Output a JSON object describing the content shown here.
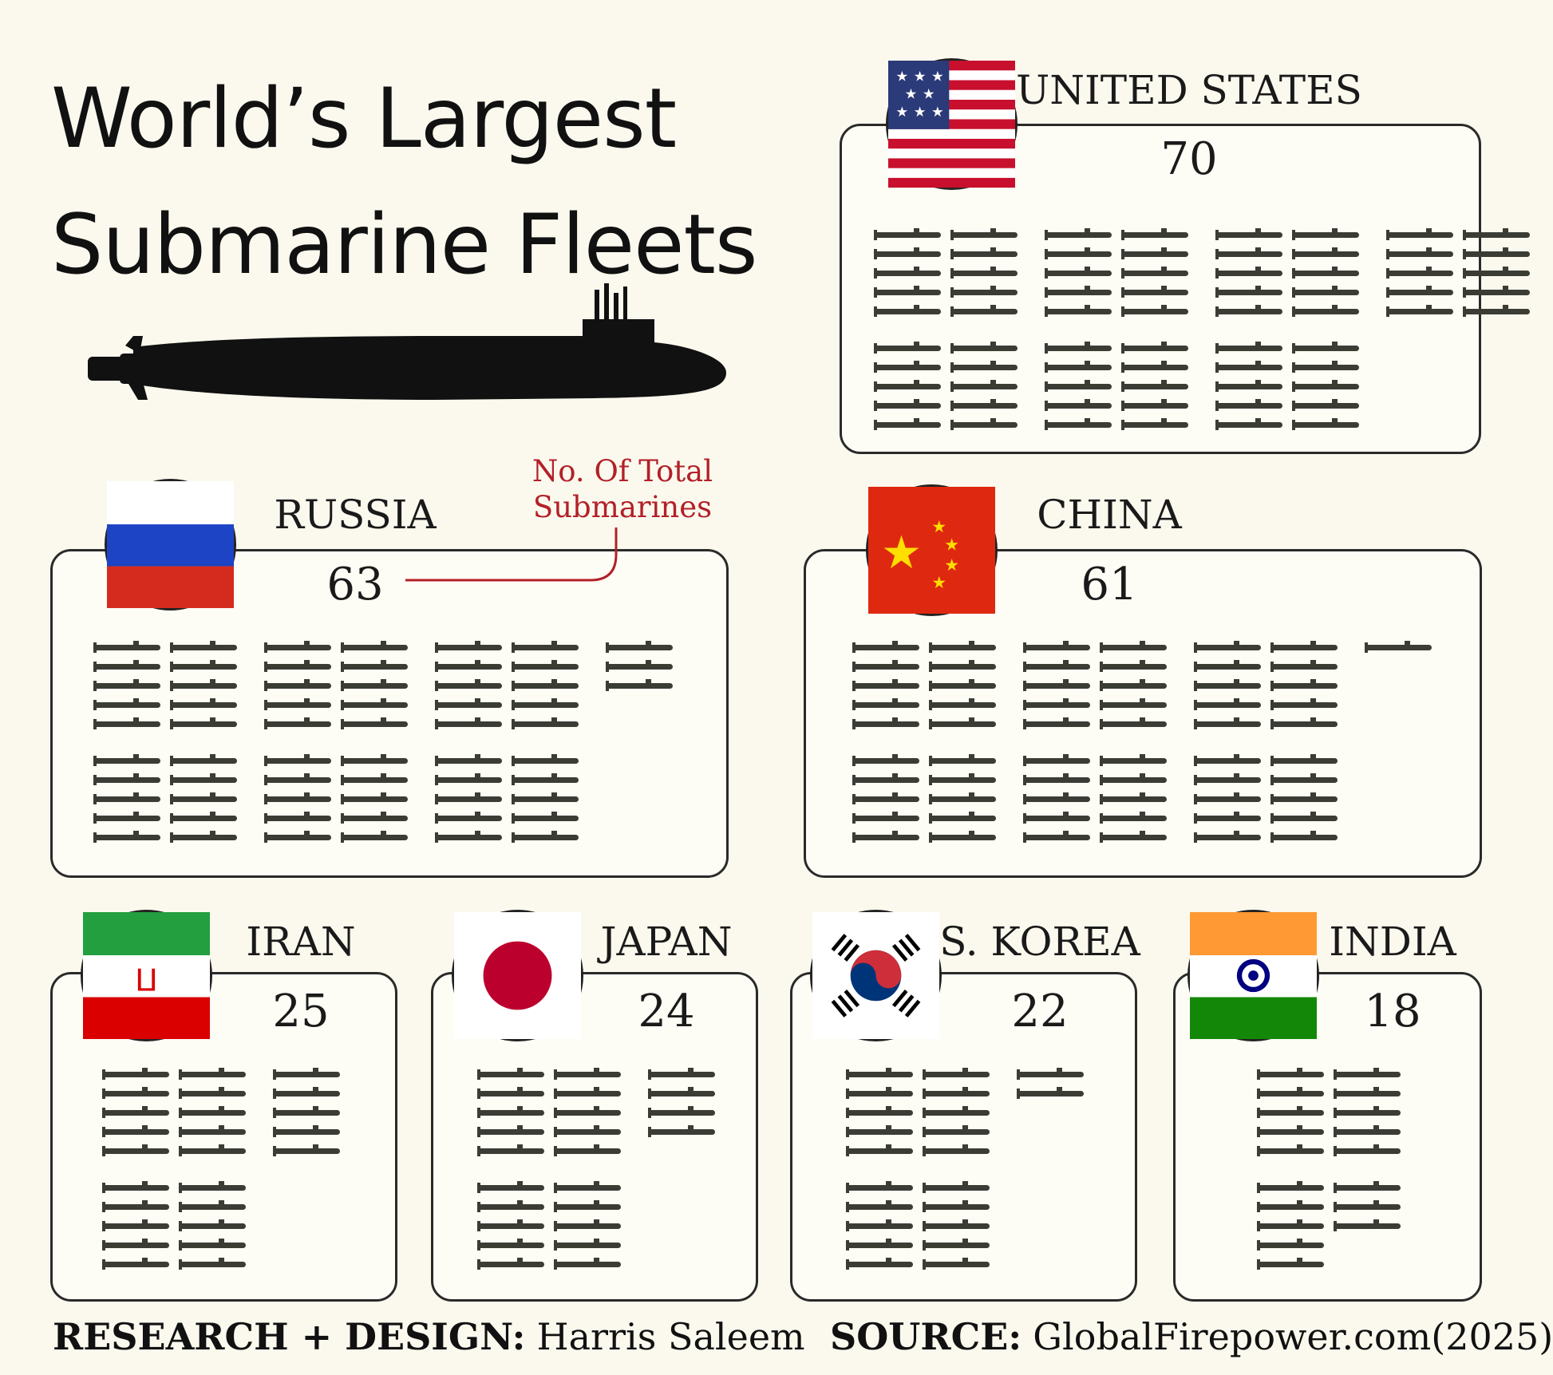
{
  "title": {
    "line1": "World’s Largest",
    "line2": "Submarine Fleets"
  },
  "annotation": {
    "line1": "No. Of Total",
    "line2": "Submarines"
  },
  "footer": {
    "credit_label": "RESEARCH + DESIGN:",
    "credit_value": "Harris Saleem",
    "source_label": "SOURCE:",
    "source_value": "GlobalFirepower.com(2025)"
  },
  "colors": {
    "background": "#fbf9ee",
    "submarine": "#3b3d35",
    "annotation": "#b32028",
    "border": "#2a2a2a"
  },
  "chart_data": {
    "type": "bar",
    "categories": [
      "UNITED STATES",
      "RUSSIA",
      "CHINA",
      "IRAN",
      "JAPAN",
      "S. KOREA",
      "INDIA"
    ],
    "values": [
      70,
      63,
      61,
      25,
      24,
      22,
      18
    ]
  }
}
